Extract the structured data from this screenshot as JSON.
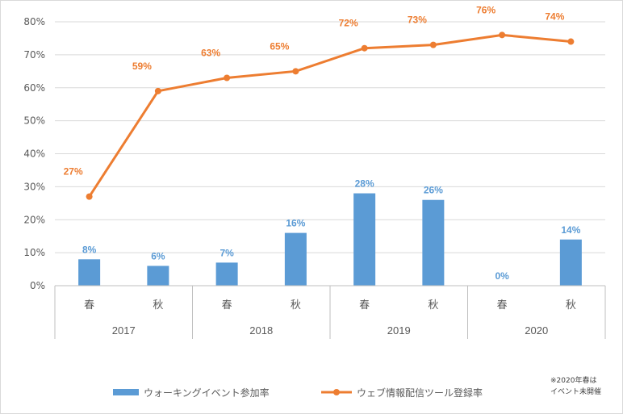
{
  "chart_data": {
    "type": "bar",
    "categories": [
      "春",
      "秋",
      "春",
      "秋",
      "春",
      "秋",
      "春",
      "秋"
    ],
    "groups": [
      "2017",
      "2018",
      "2019",
      "2020"
    ],
    "series": [
      {
        "name": "ウォーキングイベント参加率",
        "type": "bar",
        "values": [
          8,
          6,
          7,
          16,
          28,
          26,
          0,
          14
        ],
        "labels": [
          "8%",
          "6%",
          "7%",
          "16%",
          "28%",
          "26%",
          "0%",
          "14%"
        ]
      },
      {
        "name": "ウェブ情報配信ツール登録率",
        "type": "line",
        "values": [
          27,
          59,
          63,
          65,
          72,
          73,
          76,
          74
        ],
        "labels": [
          "27%",
          "59%",
          "63%",
          "65%",
          "72%",
          "73%",
          "76%",
          "74%"
        ]
      }
    ],
    "y_ticks": [
      "0%",
      "10%",
      "20%",
      "30%",
      "40%",
      "50%",
      "60%",
      "70%",
      "80%"
    ],
    "ylim": [
      0,
      80
    ],
    "grid": true,
    "legend_position": "bottom",
    "note": [
      "※2020年春は",
      "イベント未開催"
    ],
    "colors": {
      "bar": "#5b9bd5",
      "line": "#ed7d31",
      "grid": "#d9d9d9",
      "text": "#595959"
    }
  }
}
